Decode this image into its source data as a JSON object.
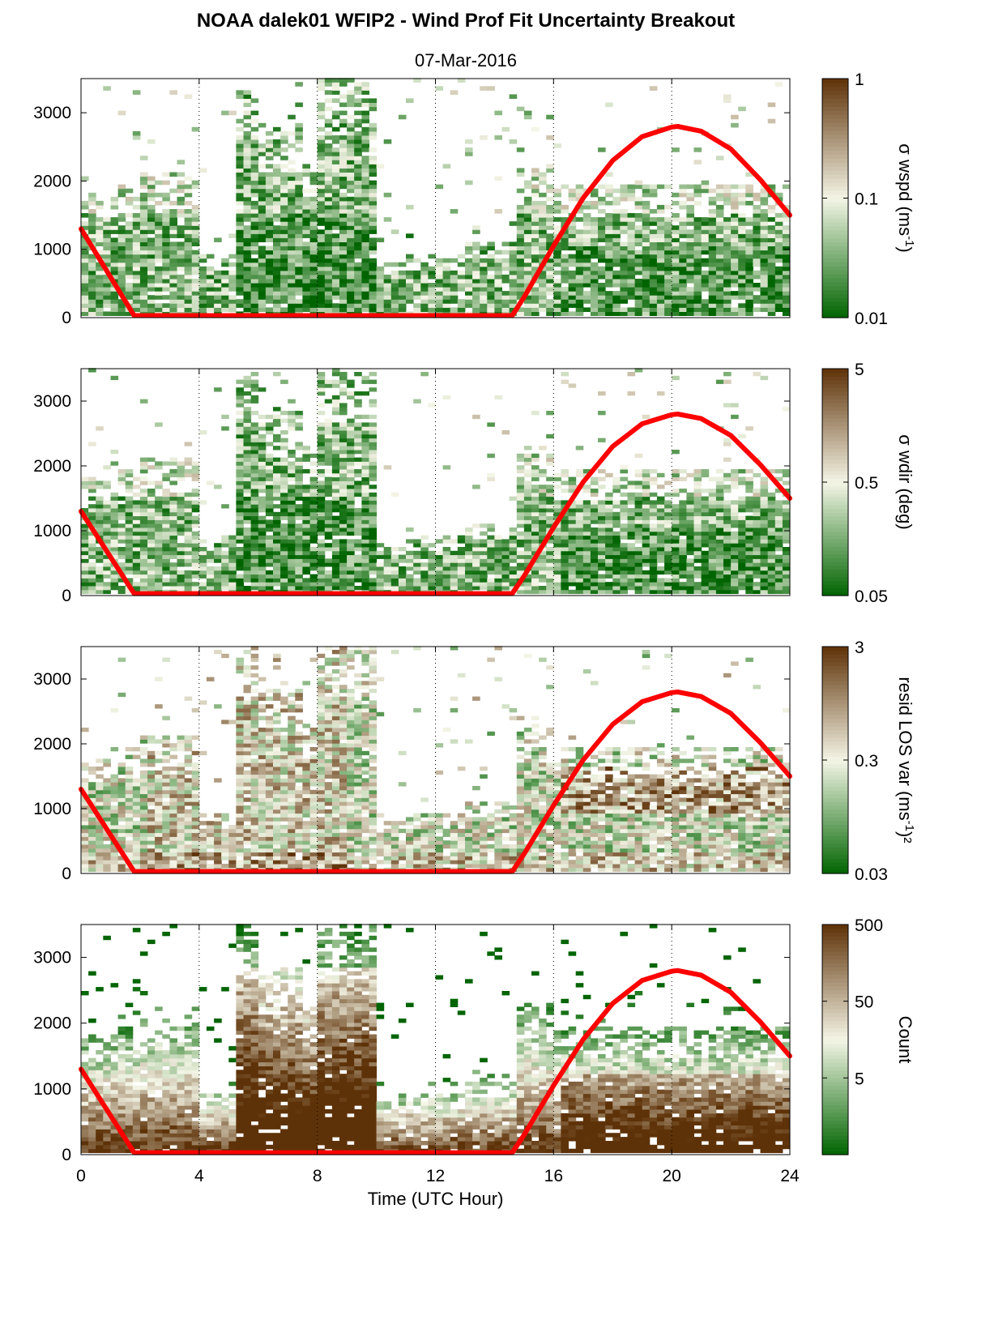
{
  "title": "NOAA dalek01 WFIP2 - Wind Prof Fit Uncertainty Breakout",
  "subtitle": "07-Mar-2016",
  "colors": {
    "sun_curve": "#ff0000",
    "low": "#006400",
    "mid": "#f4f5e6",
    "high": "#5e3208"
  },
  "chart_data": [
    {
      "type": "heatmap",
      "xlabel": "",
      "ylabel": "",
      "xlim": [
        0,
        24
      ],
      "ylim": [
        0,
        3500
      ],
      "yticks": [
        0,
        1000,
        2000,
        3000
      ],
      "colorbar": {
        "label": "σ wspd (ms",
        "label_sup": "-1",
        "label_tail": ")",
        "scale": "log",
        "range": [
          0.01,
          1
        ],
        "tick_labels": [
          "0.01",
          "0.1",
          "1"
        ]
      }
    },
    {
      "type": "heatmap",
      "xlabel": "",
      "ylabel": "",
      "xlim": [
        0,
        24
      ],
      "ylim": [
        0,
        3500
      ],
      "yticks": [
        0,
        1000,
        2000,
        3000
      ],
      "colorbar": {
        "label": "σ wdir (deg)",
        "label_sup": "",
        "label_tail": "",
        "scale": "log",
        "range": [
          0.05,
          5
        ],
        "tick_labels": [
          "0.05",
          "0.5",
          "5"
        ]
      }
    },
    {
      "type": "heatmap",
      "xlabel": "",
      "ylabel": "",
      "xlim": [
        0,
        24
      ],
      "ylim": [
        0,
        3500
      ],
      "yticks": [
        0,
        1000,
        2000,
        3000
      ],
      "colorbar": {
        "label": "resid LOS var (ms",
        "label_sup": "-1",
        "label_tail": ")²",
        "scale": "log",
        "range": [
          0.03,
          3
        ],
        "tick_labels": [
          "0.03",
          "0.3",
          "3"
        ]
      }
    },
    {
      "type": "heatmap",
      "xlabel": "Time (UTC Hour)",
      "ylabel": "",
      "xlim": [
        0,
        24
      ],
      "ylim": [
        0,
        3500
      ],
      "xticks": [
        0,
        4,
        8,
        12,
        16,
        20,
        24
      ],
      "yticks": [
        0,
        1000,
        2000,
        3000
      ],
      "colorbar": {
        "label": "Count",
        "label_sup": "",
        "label_tail": "",
        "scale": "log",
        "range": [
          0.5,
          500
        ],
        "tick_labels": [
          "5",
          "50",
          "500"
        ]
      }
    }
  ],
  "sun_elevation_curve": {
    "x": [
      0,
      1.8,
      14.6,
      15,
      16,
      17,
      18,
      19,
      20,
      20.2,
      21,
      22,
      23,
      24
    ],
    "y": [
      1300,
      30,
      30,
      300,
      1050,
      1750,
      2300,
      2650,
      2790,
      2800,
      2730,
      2470,
      2020,
      1500
    ]
  }
}
